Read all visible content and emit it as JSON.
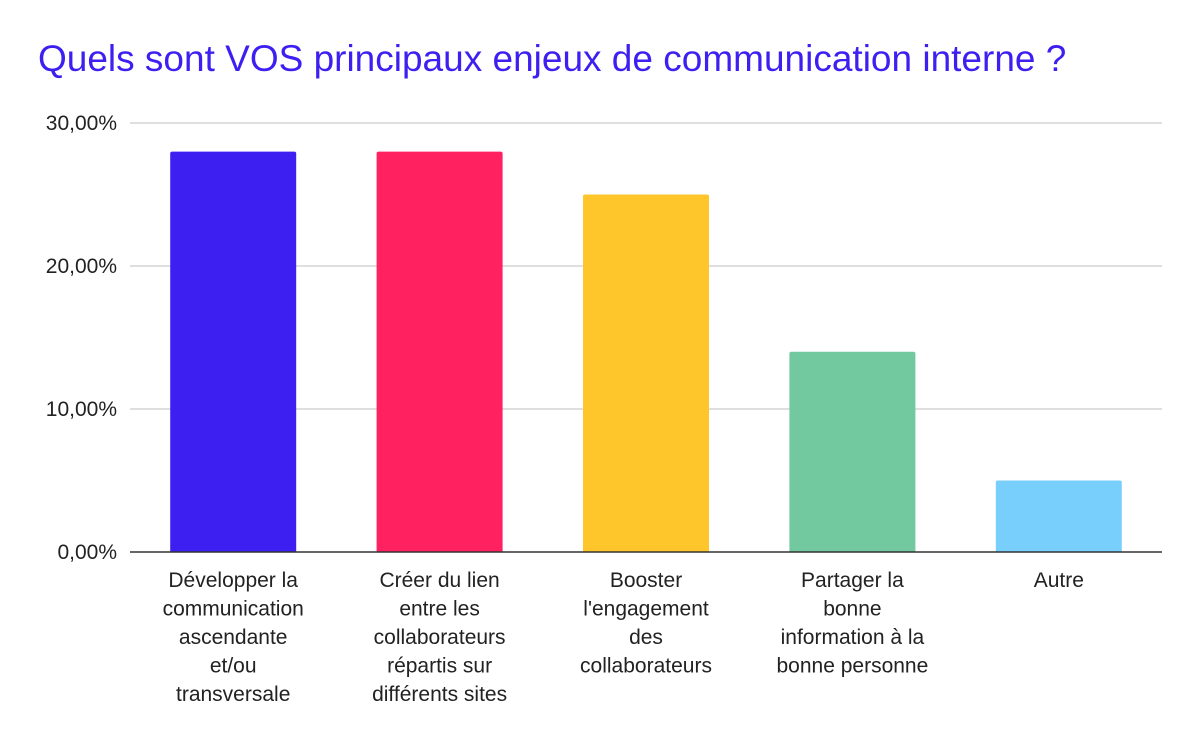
{
  "chart_data": {
    "type": "bar",
    "title": "Quels sont VOS principaux enjeux de communication interne ?",
    "xlabel": "",
    "ylabel": "",
    "ylim": [
      0,
      30
    ],
    "yticks": [
      0,
      10,
      20,
      30
    ],
    "ytick_labels": [
      "0,00%",
      "10,00%",
      "20,00%",
      "30,00%"
    ],
    "grid": true,
    "legend": "none",
    "categories": [
      "Développer la communication ascendante et/ou transversale",
      "Créer du lien entre les collaborateurs répartis sur différents sites",
      "Booster l'engagement des collaborateurs",
      "Partager la bonne information à la bonne personne",
      "Autre"
    ],
    "category_label_lines": [
      [
        "Développer la",
        "communication",
        "ascendante",
        "et/ou",
        "transversale"
      ],
      [
        "Créer du lien",
        "entre les",
        "collaborateurs",
        "répartis sur",
        "différents sites"
      ],
      [
        "Booster",
        "l'engagement",
        "des",
        "collaborateurs"
      ],
      [
        "Partager la",
        "bonne",
        "information à la",
        "bonne personne"
      ],
      [
        "Autre"
      ]
    ],
    "values": [
      28,
      28,
      25,
      14,
      5
    ],
    "colors": [
      "#3d1ff2",
      "#ff2160",
      "#fec62a",
      "#72c9a0",
      "#79cffb"
    ]
  },
  "colors": {
    "title": "#3d1ff2",
    "grid": "#cccccc",
    "axis": "#333333",
    "text": "#222222"
  }
}
